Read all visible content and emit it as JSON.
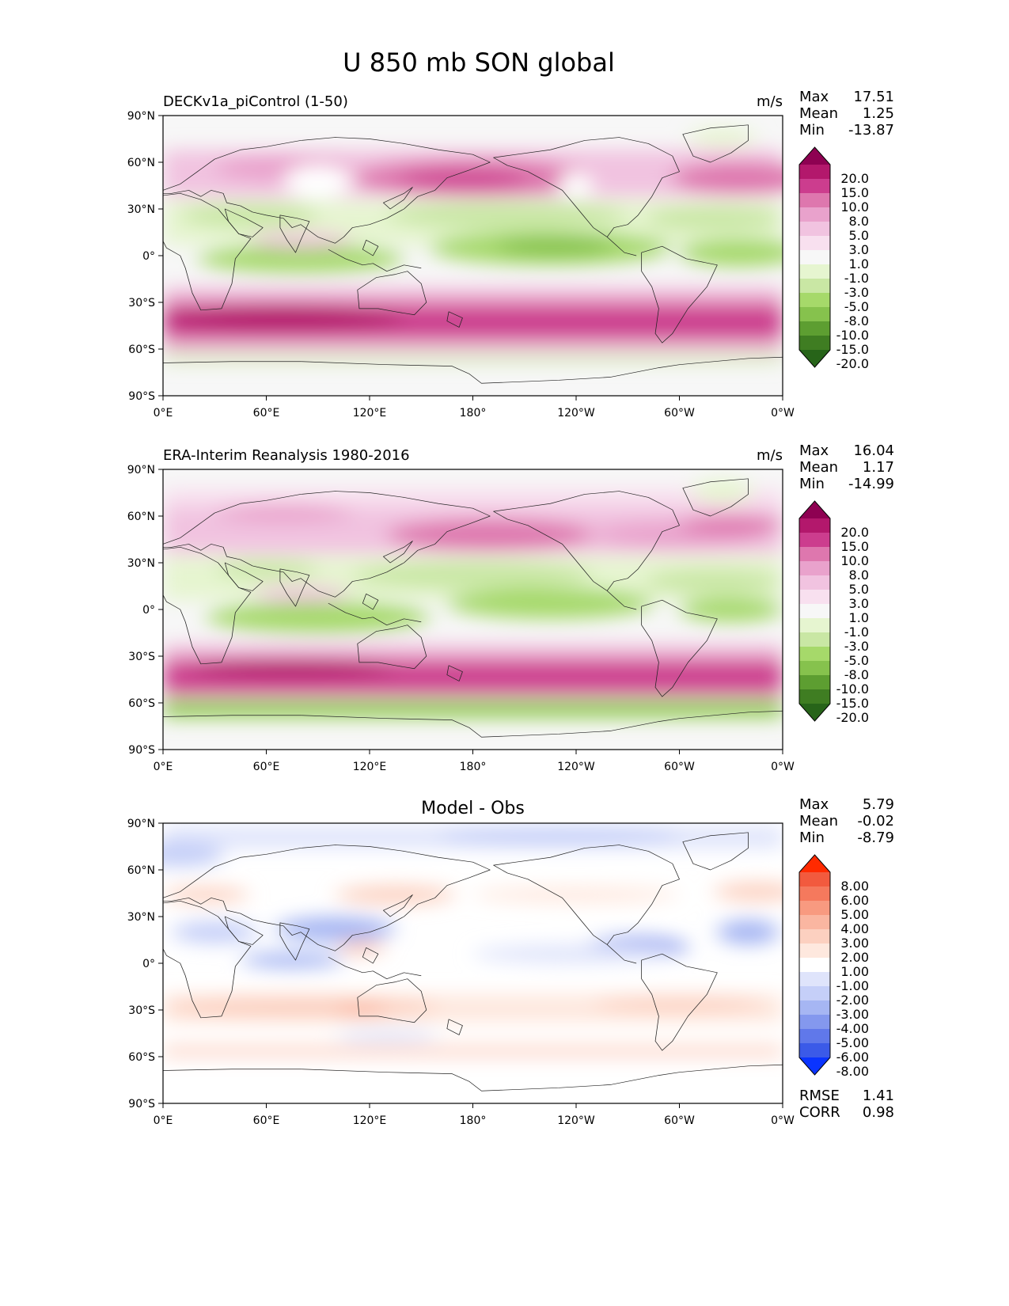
{
  "figure": {
    "title": "U 850 mb SON global"
  },
  "axes": {
    "x_ticks": [
      "0°E",
      "60°E",
      "120°E",
      "180°",
      "120°W",
      "60°W",
      "0°W"
    ],
    "y_ticks": [
      "90°N",
      "60°N",
      "30°N",
      "0°",
      "30°S",
      "60°S",
      "90°S"
    ]
  },
  "panels": [
    {
      "id": "model",
      "title_left": "DECKv1a_piControl (1-50)",
      "title_center": "",
      "units": "m/s",
      "stats": [
        {
          "label": "Max",
          "value": "17.51"
        },
        {
          "label": "Mean",
          "value": "1.25"
        },
        {
          "label": "Min",
          "value": "-13.87"
        }
      ],
      "colorbar": {
        "labels": [
          "20.0",
          "15.0",
          "10.0",
          "8.0",
          "5.0",
          "3.0",
          "1.0",
          "-1.0",
          "-3.0",
          "-5.0",
          "-8.0",
          "-10.0",
          "-15.0",
          "-20.0"
        ],
        "colors": [
          "#8e0152",
          "#b3186c",
          "#cc3d8e",
          "#de77ae",
          "#e9a2cc",
          "#f1c3e0",
          "#f8e0ef",
          "#f7f7f7",
          "#e6f5d0",
          "#c9e7a4",
          "#a6d96a",
          "#86c24d",
          "#5d9e31",
          "#3f7d22",
          "#276419"
        ]
      },
      "footer": []
    },
    {
      "id": "obs",
      "title_left": "ERA-Interim Reanalysis 1980-2016",
      "title_center": "",
      "units": "m/s",
      "stats": [
        {
          "label": "Max",
          "value": "16.04"
        },
        {
          "label": "Mean",
          "value": "1.17"
        },
        {
          "label": "Min",
          "value": "-14.99"
        }
      ],
      "colorbar": {
        "labels": [
          "20.0",
          "15.0",
          "10.0",
          "8.0",
          "5.0",
          "3.0",
          "1.0",
          "-1.0",
          "-3.0",
          "-5.0",
          "-8.0",
          "-10.0",
          "-15.0",
          "-20.0"
        ],
        "colors": [
          "#8e0152",
          "#b3186c",
          "#cc3d8e",
          "#de77ae",
          "#e9a2cc",
          "#f1c3e0",
          "#f8e0ef",
          "#f7f7f7",
          "#e6f5d0",
          "#c9e7a4",
          "#a6d96a",
          "#86c24d",
          "#5d9e31",
          "#3f7d22",
          "#276419"
        ]
      },
      "footer": []
    },
    {
      "id": "diff",
      "title_left": "",
      "title_center": "Model - Obs",
      "units": "",
      "stats": [
        {
          "label": "Max",
          "value": "5.79"
        },
        {
          "label": "Mean",
          "value": "-0.02"
        },
        {
          "label": "Min",
          "value": "-8.79"
        }
      ],
      "colorbar": {
        "labels": [
          "8.00",
          "6.00",
          "5.00",
          "4.00",
          "3.00",
          "2.00",
          "1.00",
          "-1.00",
          "-2.00",
          "-3.00",
          "-4.00",
          "-5.00",
          "-6.00",
          "-8.00"
        ],
        "colors": [
          "#ff2a00",
          "#f25a3e",
          "#f5795d",
          "#f89a80",
          "#fab6a1",
          "#fcd0c0",
          "#fee8de",
          "#ffffff",
          "#dfe4fb",
          "#c5cff8",
          "#a6b6f3",
          "#8498ee",
          "#6078ea",
          "#3b5ae8",
          "#0a34ff"
        ]
      },
      "footer": [
        {
          "label": "RMSE",
          "value": "1.41"
        },
        {
          "label": "CORR",
          "value": "0.98"
        }
      ]
    }
  ]
}
